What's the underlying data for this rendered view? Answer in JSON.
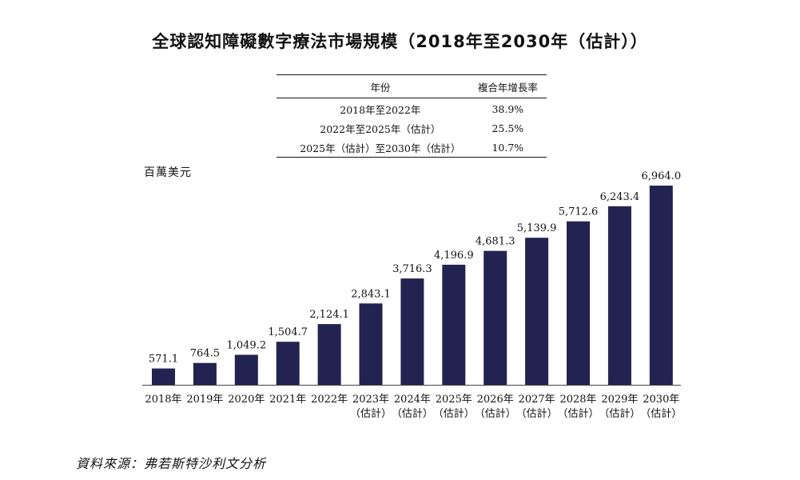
{
  "title": "全球認知障礙數字療法市場規模（2018年至2030年（估計））",
  "cagr_table": {
    "headers": [
      "年份",
      "複合年增長率"
    ],
    "rows": [
      {
        "period": "2018年至2022年",
        "rate": "38.9%"
      },
      {
        "period": "2022年至2025年（估計）",
        "rate": "25.5%"
      },
      {
        "period": "2025年（估計）至2030年（估計）",
        "rate": "10.7%"
      }
    ]
  },
  "source": "資料來源：弗若斯特沙利文分析",
  "colors": {
    "bar": "#232352"
  },
  "chart_data": {
    "type": "bar",
    "ylabel": "百萬美元",
    "ylim": [
      0,
      6964.0
    ],
    "categories": [
      [
        "2018年"
      ],
      [
        "2019年"
      ],
      [
        "2020年"
      ],
      [
        "2021年"
      ],
      [
        "2022年"
      ],
      [
        "2023年",
        "（估計）"
      ],
      [
        "2024年",
        "（估計）"
      ],
      [
        "2025年",
        "（估計）"
      ],
      [
        "2026年",
        "（估計）"
      ],
      [
        "2027年",
        "（估計）"
      ],
      [
        "2028年",
        "（估計）"
      ],
      [
        "2029年",
        "（估計）"
      ],
      [
        "2030年",
        "（估計）"
      ]
    ],
    "values": [
      571.1,
      764.5,
      1049.2,
      1504.7,
      2124.1,
      2843.1,
      3716.3,
      4196.9,
      4681.3,
      5139.9,
      5712.6,
      6243.4,
      6964.0
    ],
    "value_labels": [
      "571.1",
      "764.5",
      "1,049.2",
      "1,504.7",
      "2,124.1",
      "2,843.1",
      "3,716.3",
      "4,196.9",
      "4,681.3",
      "5,139.9",
      "5,712.6",
      "6,243.4",
      "6,964.0"
    ]
  }
}
